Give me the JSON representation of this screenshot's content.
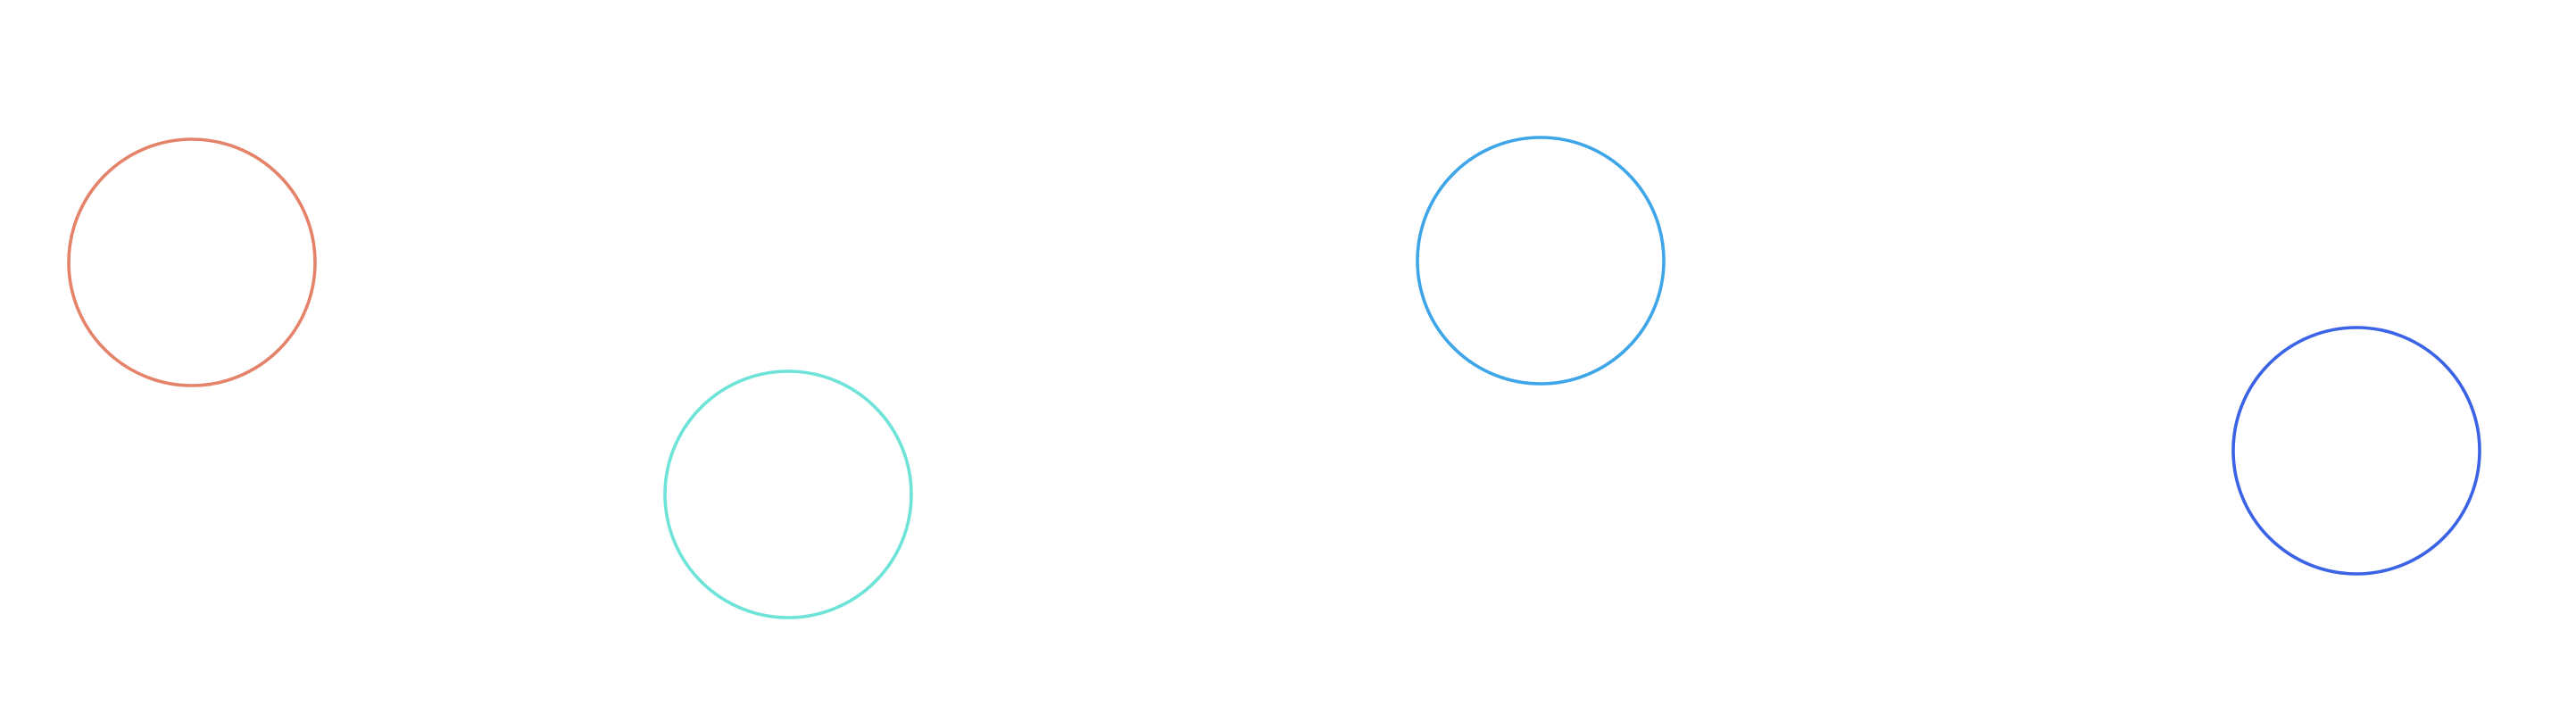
{
  "canvas": {
    "background": "#ffffff"
  },
  "circles": [
    {
      "name": "circle-coral",
      "color": "#e5836a"
    },
    {
      "name": "circle-turquoise",
      "color": "#6ee3d8"
    },
    {
      "name": "circle-sky-blue",
      "color": "#3ea6e8"
    },
    {
      "name": "circle-royal-blue",
      "color": "#3b63e6"
    }
  ]
}
